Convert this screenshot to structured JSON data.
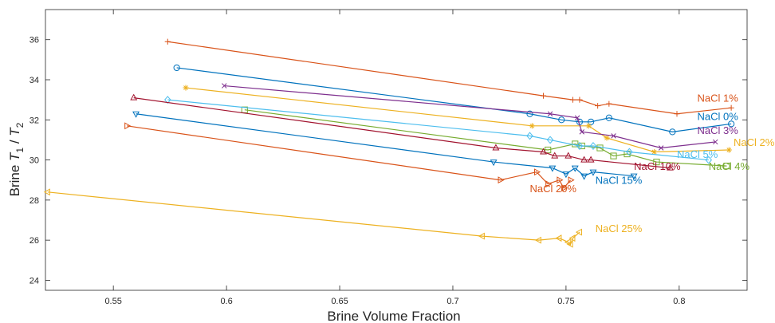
{
  "chart_data": {
    "type": "line",
    "xlabel": "Brine Volume Fraction",
    "ylabel": {
      "prefix": "Brine ",
      "t1": "T",
      "s1": "1",
      "sep": " / ",
      "t2": "T",
      "s2": "2"
    },
    "xlim": [
      0.52,
      0.83
    ],
    "ylim": [
      23.5,
      37.5
    ],
    "xticks": [
      0.55,
      0.6,
      0.65,
      0.7,
      0.75,
      0.8
    ],
    "xtick_labels": [
      "0.55",
      "0.6",
      "0.65",
      "0.7",
      "0.75",
      "0.8"
    ],
    "yticks": [
      24,
      26,
      28,
      30,
      32,
      34,
      36
    ],
    "ytick_labels": [
      "24",
      "26",
      "28",
      "30",
      "32",
      "34",
      "36"
    ],
    "grid": false,
    "legend": "none",
    "series": [
      {
        "name": "NaCl 0%",
        "color": "#0072BD",
        "marker": "circle",
        "points": [
          [
            0.578,
            34.6
          ],
          [
            0.734,
            32.3
          ],
          [
            0.748,
            32.0
          ],
          [
            0.756,
            31.9
          ],
          [
            0.761,
            31.9
          ],
          [
            0.769,
            32.1
          ],
          [
            0.797,
            31.4
          ],
          [
            0.823,
            31.8
          ]
        ],
        "label_x": 0.808,
        "label_y": 32.0
      },
      {
        "name": "NaCl 1%",
        "color": "#D95319",
        "marker": "plus",
        "points": [
          [
            0.574,
            35.9
          ],
          [
            0.74,
            33.2
          ],
          [
            0.753,
            33.0
          ],
          [
            0.756,
            33.0
          ],
          [
            0.764,
            32.7
          ],
          [
            0.769,
            32.8
          ],
          [
            0.799,
            32.3
          ],
          [
            0.823,
            32.6
          ]
        ],
        "label_x": 0.808,
        "label_y": 32.9
      },
      {
        "name": "NaCl 2%",
        "color": "#EDB120",
        "marker": "star",
        "points": [
          [
            0.582,
            33.6
          ],
          [
            0.735,
            31.7
          ],
          [
            0.76,
            31.7
          ],
          [
            0.768,
            31.1
          ],
          [
            0.789,
            30.4
          ],
          [
            0.822,
            30.5
          ]
        ],
        "label_x": 0.824,
        "label_y": 30.7
      },
      {
        "name": "NaCl 3%",
        "color": "#7E2F8E",
        "marker": "cross",
        "points": [
          [
            0.599,
            33.7
          ],
          [
            0.743,
            32.3
          ],
          [
            0.755,
            32.1
          ],
          [
            0.757,
            31.4
          ],
          [
            0.771,
            31.2
          ],
          [
            0.792,
            30.6
          ],
          [
            0.816,
            30.9
          ]
        ],
        "label_x": 0.808,
        "label_y": 31.3
      },
      {
        "name": "NaCl 4%",
        "color": "#77AC30",
        "marker": "square",
        "points": [
          [
            0.608,
            32.5
          ],
          [
            0.742,
            30.5
          ],
          [
            0.754,
            30.8
          ],
          [
            0.757,
            30.7
          ],
          [
            0.765,
            30.6
          ],
          [
            0.771,
            30.2
          ],
          [
            0.777,
            30.3
          ],
          [
            0.79,
            29.9
          ],
          [
            0.821,
            29.7
          ]
        ],
        "label_x": 0.813,
        "label_y": 29.5
      },
      {
        "name": "NaCl 5%",
        "color": "#4DBEEE",
        "marker": "diamond",
        "points": [
          [
            0.574,
            33.0
          ],
          [
            0.734,
            31.2
          ],
          [
            0.743,
            31.0
          ],
          [
            0.756,
            30.7
          ],
          [
            0.762,
            30.7
          ],
          [
            0.778,
            30.4
          ],
          [
            0.813,
            30.0
          ]
        ],
        "label_x": 0.799,
        "label_y": 30.1
      },
      {
        "name": "NaCl 10%",
        "color": "#A2142F",
        "marker": "triangle-up",
        "points": [
          [
            0.559,
            33.1
          ],
          [
            0.719,
            30.6
          ],
          [
            0.74,
            30.4
          ],
          [
            0.745,
            30.2
          ],
          [
            0.751,
            30.2
          ],
          [
            0.758,
            30.0
          ],
          [
            0.761,
            30.0
          ],
          [
            0.796,
            29.6
          ]
        ],
        "label_x": 0.78,
        "label_y": 29.5
      },
      {
        "name": "NaCl 15%",
        "color": "#0072BD",
        "marker": "triangle-down",
        "points": [
          [
            0.56,
            32.3
          ],
          [
            0.718,
            29.9
          ],
          [
            0.744,
            29.6
          ],
          [
            0.75,
            29.3
          ],
          [
            0.754,
            29.6
          ],
          [
            0.758,
            29.2
          ],
          [
            0.762,
            29.4
          ],
          [
            0.78,
            29.2
          ]
        ],
        "label_x": 0.763,
        "label_y": 28.8
      },
      {
        "name": "NaCl 20%",
        "color": "#D95319",
        "marker": "triangle-right",
        "points": [
          [
            0.556,
            31.7
          ],
          [
            0.721,
            29.0
          ],
          [
            0.737,
            29.4
          ],
          [
            0.742,
            28.8
          ],
          [
            0.747,
            29.0
          ],
          [
            0.749,
            28.6
          ],
          [
            0.752,
            29.0
          ]
        ],
        "label_x": 0.734,
        "label_y": 28.4
      },
      {
        "name": "NaCl 25%",
        "color": "#EDB120",
        "marker": "triangle-left",
        "points": [
          [
            0.521,
            28.4
          ],
          [
            0.713,
            26.2
          ],
          [
            0.738,
            26.0
          ],
          [
            0.747,
            26.1
          ],
          [
            0.751,
            25.9
          ],
          [
            0.752,
            25.8
          ],
          [
            0.753,
            26.1
          ],
          [
            0.756,
            26.4
          ]
        ],
        "label_x": 0.763,
        "label_y": 26.4
      }
    ]
  }
}
